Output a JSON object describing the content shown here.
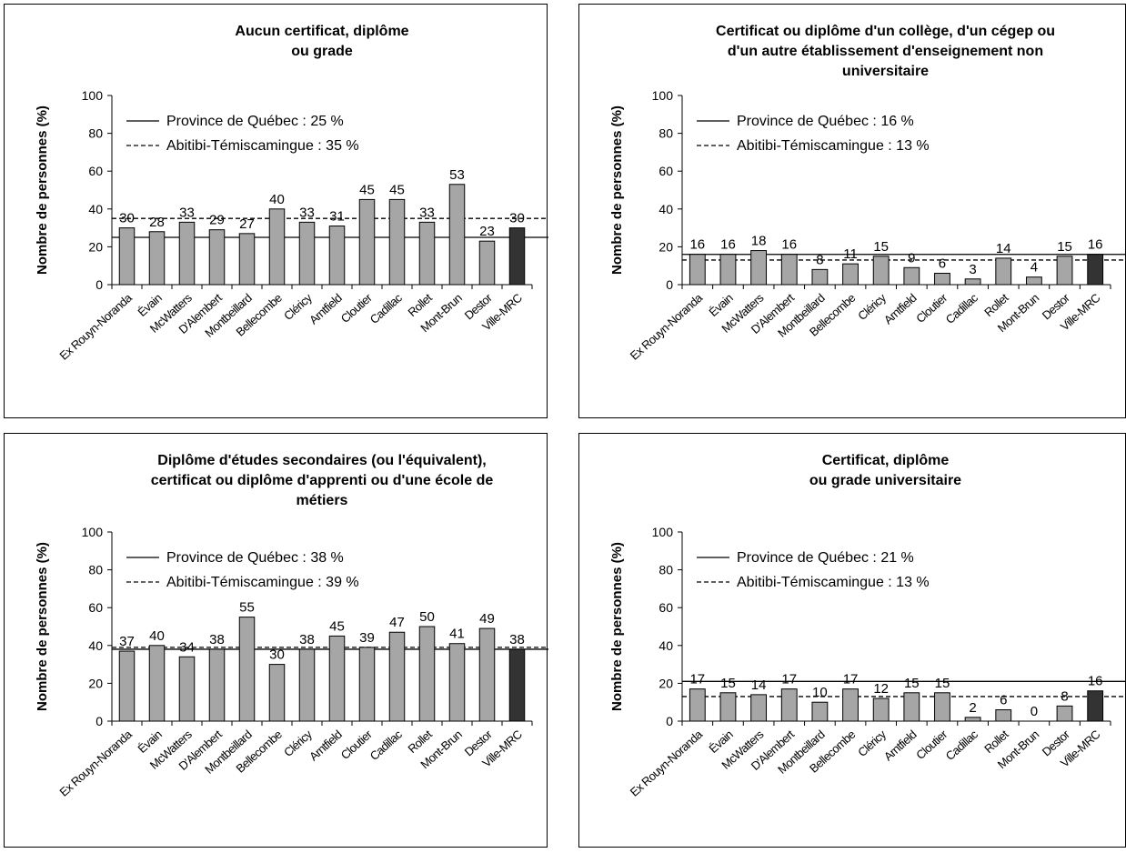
{
  "chart_data": [
    {
      "type": "bar",
      "title": [
        "Aucun certificat, diplôme",
        "ou grade"
      ],
      "ylabel": "Nombre de personnes (%)",
      "ylim": [
        0,
        100
      ],
      "yticks": [
        0,
        20,
        40,
        60,
        80,
        100
      ],
      "categories": [
        "Ex Rouyn-Noranda",
        "Évain",
        "McWatters",
        "D'Alembert",
        "Montbeillard",
        "Bellecombe",
        "Cléricy",
        "Arntfield",
        "Cloutier",
        "Cadillac",
        "Rollet",
        "Mont-Brun",
        "Destor",
        "Ville-MRC"
      ],
      "values": [
        30,
        28,
        33,
        29,
        27,
        40,
        33,
        31,
        45,
        45,
        33,
        53,
        23,
        30
      ],
      "reference_lines": [
        {
          "label": "Province de Québec : 25 %",
          "value": 25,
          "style": "solid"
        },
        {
          "label": "Abitibi-Témiscamingue : 35 %",
          "value": 35,
          "style": "dashed"
        }
      ],
      "colors": {
        "bar": "#a6a6a6",
        "highlight": "#333333"
      },
      "grid": false,
      "legend_position": "top-left"
    },
    {
      "type": "bar",
      "title": [
        "Certificat ou diplôme d'un collège, d'un cégep ou",
        "d'un autre établissement d'enseignement non",
        "universitaire"
      ],
      "ylabel": "Nombre de personnes (%)",
      "ylim": [
        0,
        100
      ],
      "yticks": [
        0,
        20,
        40,
        60,
        80,
        100
      ],
      "categories": [
        "Ex Rouyn-Noranda",
        "Évain",
        "McWatters",
        "D'Alembert",
        "Montbeillard",
        "Bellecombe",
        "Cléricy",
        "Arntfield",
        "Cloutier",
        "Cadillac",
        "Rollet",
        "Mont-Brun",
        "Destor",
        "Ville-MRC"
      ],
      "values": [
        16,
        16,
        18,
        16,
        8,
        11,
        15,
        9,
        6,
        3,
        14,
        4,
        15,
        16
      ],
      "reference_lines": [
        {
          "label": "Province de Québec : 16 %",
          "value": 16,
          "style": "solid"
        },
        {
          "label": "Abitibi-Témiscamingue : 13 %",
          "value": 13,
          "style": "dashed"
        }
      ],
      "colors": {
        "bar": "#a6a6a6",
        "highlight": "#333333"
      },
      "grid": false,
      "legend_position": "top-left"
    },
    {
      "type": "bar",
      "title": [
        "Diplôme d'études secondaires (ou l'équivalent),",
        "certificat ou diplôme d'apprenti ou d'une école de",
        "métiers"
      ],
      "ylabel": "Nombre de personnes (%)",
      "ylim": [
        0,
        100
      ],
      "yticks": [
        0,
        20,
        40,
        60,
        80,
        100
      ],
      "categories": [
        "Ex Rouyn-Noranda",
        "Évain",
        "McWatters",
        "D'Alembert",
        "Montbeillard",
        "Bellecombe",
        "Cléricy",
        "Arntfield",
        "Cloutier",
        "Cadillac",
        "Rollet",
        "Mont-Brun",
        "Destor",
        "Ville-MRC"
      ],
      "values": [
        37,
        40,
        34,
        38,
        55,
        30,
        38,
        45,
        39,
        47,
        50,
        41,
        49,
        38
      ],
      "reference_lines": [
        {
          "label": "Province de Québec : 38 %",
          "value": 38,
          "style": "solid"
        },
        {
          "label": "Abitibi-Témiscamingue : 39 %",
          "value": 39,
          "style": "dashed"
        }
      ],
      "colors": {
        "bar": "#a6a6a6",
        "highlight": "#333333"
      },
      "grid": false,
      "legend_position": "top-left"
    },
    {
      "type": "bar",
      "title": [
        "Certificat, diplôme",
        "ou grade universitaire"
      ],
      "ylabel": "Nombre de personnes (%)",
      "ylim": [
        0,
        100
      ],
      "yticks": [
        0,
        20,
        40,
        60,
        80,
        100
      ],
      "categories": [
        "Ex Rouyn-Noranda",
        "Évain",
        "McWatters",
        "D'Alembert",
        "Montbeillard",
        "Bellecombe",
        "Cléricy",
        "Arntfield",
        "Cloutier",
        "Cadillac",
        "Rollet",
        "Mont-Brun",
        "Destor",
        "Ville-MRC"
      ],
      "values": [
        17,
        15,
        14,
        17,
        10,
        17,
        12,
        15,
        15,
        2,
        6,
        0,
        8,
        16
      ],
      "reference_lines": [
        {
          "label": "Province de Québec : 21 %",
          "value": 21,
          "style": "solid"
        },
        {
          "label": "Abitibi-Témiscamingue : 13 %",
          "value": 13,
          "style": "dashed"
        }
      ],
      "colors": {
        "bar": "#a6a6a6",
        "highlight": "#333333"
      },
      "grid": false,
      "legend_position": "top-left"
    }
  ]
}
